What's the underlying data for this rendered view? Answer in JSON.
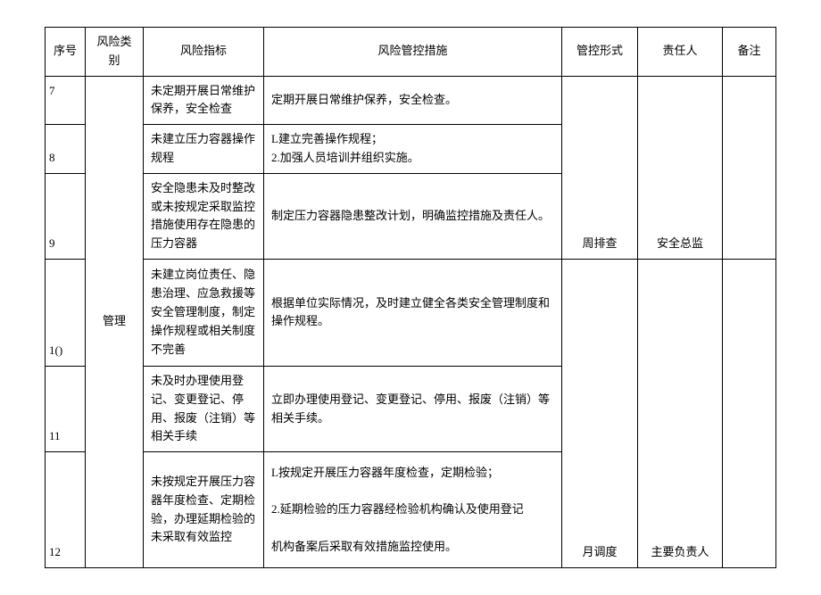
{
  "headers": {
    "seq": "序号",
    "category": "风险类别",
    "indicator": "风险指标",
    "measures": "风险管控措施",
    "form": "管控形式",
    "responsible": "责任人",
    "note": "备注"
  },
  "category": "管理",
  "rows": {
    "r7": {
      "seq": "7",
      "indicator": "未定期开展日常维护保养，安全检查",
      "measures": "定期开展日常维护保养，安全检查。"
    },
    "r8": {
      "seq": "8",
      "indicator": "未建立压力容器操作规程",
      "measures": "L建立完善操作规程；\n2.加强人员培训并组织实施。"
    },
    "r9": {
      "seq": "9",
      "indicator": "安全隐患未及时整改或未按规定采取监控措施使用存在隐患的压力容器",
      "measures": "制定压力容器隐患整改计划，明确监控措施及责任人。",
      "form": "周排查",
      "responsible": "安全总监"
    },
    "r10": {
      "seq": "1()",
      "indicator": "未建立岗位责任、隐患治理、应急救援等安全管理制度，制定操作规程或相关制度不完善",
      "measures": "根据单位实际情况，及时建立健全各类安全管理制度和操作规程。"
    },
    "r11": {
      "seq": "11",
      "indicator": "未及时办理使用登记、变更登记、停用、报废（注销）等相关手续",
      "measures": "立即办理使用登记、变更登记、停用、报废（注销）等相关手续。"
    },
    "r12": {
      "seq": "12",
      "indicator": "未按规定开展压力容器年度检查、定期检验，办理延期检验的未采取有效监控",
      "measures": "L按规定开展压力容器年度检查，定期检验；\n\n2.延期检验的压力容器经检验机构确认及使用登记\n\n机构备案后采取有效措施监控使用。",
      "form": "月调度",
      "responsible": "主要负责人"
    }
  }
}
